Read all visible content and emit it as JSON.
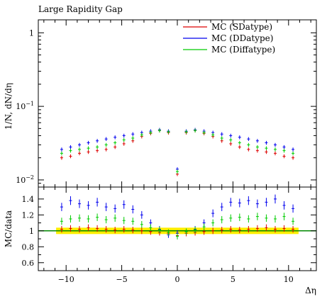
{
  "chart_data": [
    {
      "type": "scatter",
      "panel": "main",
      "title": "Large Rapidity Gap",
      "xlabel": "",
      "ylabel": "1/N, dN/dη",
      "yscale": "log",
      "xlim": [
        -12.5,
        12.5
      ],
      "ylim": [
        0.008,
        1.5
      ],
      "yticks": [
        {
          "value": 0.01,
          "base": "10",
          "exp": "−2"
        },
        {
          "value": 0.1,
          "base": "10",
          "exp": "−1"
        },
        {
          "value": 1,
          "base": "1",
          "exp": ""
        }
      ],
      "legend_position": "top-right",
      "series": [
        {
          "name": "MC (SDatype)",
          "color": "#dd0000",
          "x": [
            -10.4,
            -9.6,
            -8.8,
            -8.0,
            -7.2,
            -6.4,
            -5.6,
            -4.8,
            -4.0,
            -3.2,
            -2.4,
            -1.6,
            -0.8,
            0.0,
            0.8,
            1.6,
            2.4,
            3.2,
            4.0,
            4.8,
            5.6,
            6.4,
            7.2,
            8.0,
            8.8,
            9.6,
            10.4
          ],
          "y": [
            0.02,
            0.021,
            0.023,
            0.024,
            0.025,
            0.026,
            0.028,
            0.031,
            0.034,
            0.039,
            0.043,
            0.047,
            0.044,
            0.012,
            0.044,
            0.047,
            0.043,
            0.039,
            0.034,
            0.031,
            0.028,
            0.026,
            0.025,
            0.024,
            0.023,
            0.021,
            0.02
          ]
        },
        {
          "name": "MC (DDatype)",
          "color": "#0000ee",
          "x": [
            -10.4,
            -9.6,
            -8.8,
            -8.0,
            -7.2,
            -6.4,
            -5.6,
            -4.8,
            -4.0,
            -3.2,
            -2.4,
            -1.6,
            -0.8,
            0.0,
            0.8,
            1.6,
            2.4,
            3.2,
            4.0,
            4.8,
            5.6,
            6.4,
            7.2,
            8.0,
            8.8,
            9.6,
            10.4
          ],
          "y": [
            0.026,
            0.028,
            0.03,
            0.032,
            0.034,
            0.036,
            0.038,
            0.04,
            0.042,
            0.044,
            0.046,
            0.048,
            0.046,
            0.014,
            0.046,
            0.048,
            0.046,
            0.044,
            0.042,
            0.04,
            0.038,
            0.036,
            0.034,
            0.032,
            0.03,
            0.028,
            0.026
          ]
        },
        {
          "name": "MC (Diffatype)",
          "color": "#00cc00",
          "x": [
            -10.4,
            -9.6,
            -8.8,
            -8.0,
            -7.2,
            -6.4,
            -5.6,
            -4.8,
            -4.0,
            -3.2,
            -2.4,
            -1.6,
            -0.8,
            0.0,
            0.8,
            1.6,
            2.4,
            3.2,
            4.0,
            4.8,
            5.6,
            6.4,
            7.2,
            8.0,
            8.8,
            9.6,
            10.4
          ],
          "y": [
            0.023,
            0.025,
            0.026,
            0.027,
            0.028,
            0.03,
            0.032,
            0.035,
            0.037,
            0.041,
            0.044,
            0.047,
            0.045,
            0.013,
            0.045,
            0.047,
            0.044,
            0.041,
            0.037,
            0.035,
            0.032,
            0.03,
            0.028,
            0.027,
            0.026,
            0.025,
            0.023
          ]
        }
      ]
    },
    {
      "type": "scatter",
      "panel": "ratio",
      "xlabel": "Δη",
      "ylabel": "MC/data",
      "xlim": [
        -12.5,
        12.5
      ],
      "ylim": [
        0.5,
        1.55
      ],
      "xticks": [
        -10,
        -5,
        0,
        5,
        10
      ],
      "xtick_labels": [
        "−10",
        "−5",
        "0",
        "5",
        "10"
      ],
      "yticks": [
        0.6,
        0.8,
        1,
        1.2,
        1.4
      ],
      "ytick_labels": [
        "0.6",
        "0.8",
        "1",
        "1.2",
        "1.4"
      ],
      "reference_line": 1,
      "band": [
        0.96,
        1.04
      ],
      "series": [
        {
          "name": "MC (SDatype)",
          "color": "#dd0000",
          "x": [
            -10.4,
            -9.6,
            -8.8,
            -8.0,
            -7.2,
            -6.4,
            -5.6,
            -4.8,
            -4.0,
            -3.2,
            -2.4,
            -1.6,
            -0.8,
            0.0,
            0.8,
            1.6,
            2.4,
            3.2,
            4.0,
            4.8,
            5.6,
            6.4,
            7.2,
            8.0,
            8.8,
            9.6,
            10.4
          ],
          "y": [
            1.02,
            1.03,
            1.02,
            1.04,
            1.03,
            1.02,
            1.01,
            1.02,
            1.01,
            1.0,
            0.99,
            0.98,
            0.97,
            0.94,
            0.97,
            0.98,
            0.99,
            1.0,
            1.01,
            1.02,
            1.01,
            1.02,
            1.03,
            1.04,
            1.02,
            1.03,
            1.02
          ]
        },
        {
          "name": "MC (DDatype)",
          "color": "#0000ee",
          "x": [
            -10.4,
            -9.6,
            -8.8,
            -8.0,
            -7.2,
            -6.4,
            -5.6,
            -4.8,
            -4.0,
            -3.2,
            -2.4,
            -1.6,
            -0.8,
            0.0,
            0.8,
            1.6,
            2.4,
            3.2,
            4.0,
            4.8,
            5.6,
            6.4,
            7.2,
            8.0,
            8.8,
            9.6,
            10.4
          ],
          "y": [
            1.3,
            1.38,
            1.34,
            1.32,
            1.36,
            1.3,
            1.28,
            1.33,
            1.27,
            1.2,
            1.1,
            1.02,
            0.95,
            0.97,
            0.99,
            1.02,
            1.1,
            1.22,
            1.3,
            1.36,
            1.35,
            1.38,
            1.34,
            1.36,
            1.4,
            1.32,
            1.28
          ]
        },
        {
          "name": "MC (Diffatype)",
          "color": "#00cc00",
          "x": [
            -10.4,
            -9.6,
            -8.8,
            -8.0,
            -7.2,
            -6.4,
            -5.6,
            -4.8,
            -4.0,
            -3.2,
            -2.4,
            -1.6,
            -0.8,
            0.0,
            0.8,
            1.6,
            2.4,
            3.2,
            4.0,
            4.8,
            5.6,
            6.4,
            7.2,
            8.0,
            8.8,
            9.6,
            10.4
          ],
          "y": [
            1.12,
            1.15,
            1.16,
            1.15,
            1.17,
            1.14,
            1.16,
            1.13,
            1.12,
            1.08,
            1.04,
            1.01,
            0.98,
            0.93,
            0.99,
            1.01,
            1.05,
            1.1,
            1.14,
            1.16,
            1.17,
            1.15,
            1.18,
            1.16,
            1.15,
            1.18,
            1.12
          ]
        }
      ]
    }
  ]
}
